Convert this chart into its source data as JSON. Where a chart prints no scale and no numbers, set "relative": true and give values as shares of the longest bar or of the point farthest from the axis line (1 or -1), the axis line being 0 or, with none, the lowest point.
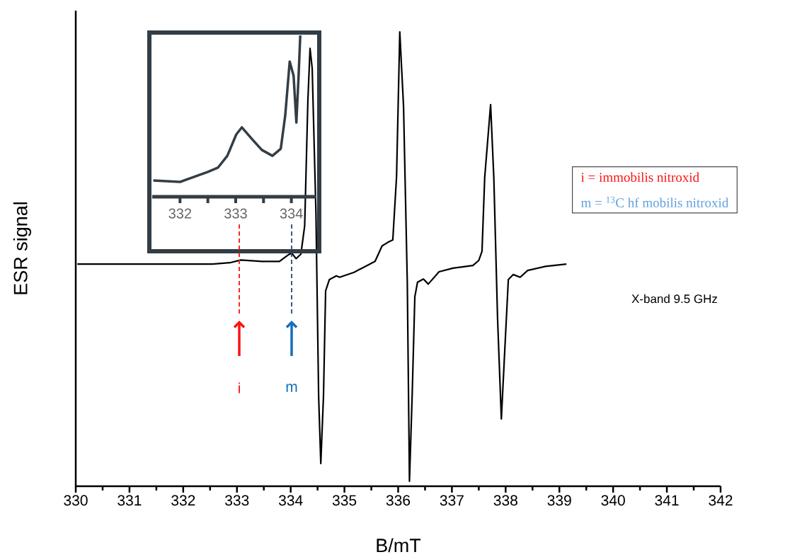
{
  "chart_data": [
    {
      "type": "line",
      "xlabel": "B/mT",
      "ylabel": "ESR signal",
      "relative": true,
      "xlim": [
        330,
        342
      ],
      "xticks": [
        330,
        331,
        332,
        333,
        334,
        335,
        336,
        337,
        338,
        339,
        340,
        341,
        342
      ],
      "x": [
        330.03,
        331.23,
        332.54,
        332.87,
        333.07,
        333.47,
        333.79,
        333.95,
        334.02,
        334.1,
        334.19,
        334.26,
        334.32,
        334.36,
        334.4,
        334.47,
        334.52,
        334.56,
        334.61,
        334.65,
        334.72,
        334.85,
        334.91,
        335.18,
        335.57,
        335.7,
        335.81,
        335.9,
        335.97,
        336.03,
        336.1,
        336.17,
        336.21,
        336.26,
        336.31,
        336.36,
        336.47,
        336.56,
        336.76,
        337.02,
        337.39,
        337.5,
        337.56,
        337.61,
        337.72,
        337.78,
        337.85,
        337.92,
        337.98,
        338.05,
        338.14,
        338.27,
        338.41,
        338.74,
        339.13
      ],
      "series": [
        {
          "color": "#000000",
          "values": [
            0.489,
            0.489,
            0.489,
            0.492,
            0.498,
            0.495,
            0.495,
            0.509,
            0.513,
            0.501,
            0.511,
            0.573,
            0.85,
            0.964,
            0.92,
            0.6,
            0.198,
            0.05,
            0.198,
            0.43,
            0.455,
            0.463,
            0.46,
            0.471,
            0.495,
            0.529,
            0.537,
            0.542,
            0.682,
            1.0,
            0.836,
            0.447,
            0.011,
            0.198,
            0.417,
            0.449,
            0.456,
            0.445,
            0.472,
            0.48,
            0.486,
            0.497,
            0.517,
            0.679,
            0.84,
            0.679,
            0.368,
            0.148,
            0.291,
            0.455,
            0.466,
            0.46,
            0.475,
            0.484,
            0.489
          ]
        }
      ],
      "annotations": [
        "i = immobilis nitroxid",
        "m = $^{13}$C hf mobilis nitroxid",
        "X-band 9.5 GHz",
        "i",
        "m"
      ]
    },
    {
      "type": "line",
      "relative": true,
      "xlim": [
        331.5,
        334.45
      ],
      "xticks": [
        332,
        {
          "value": 332.5,
          "label": null
        },
        333,
        {
          "value": 333.5,
          "label": null
        },
        334
      ],
      "x": [
        331.52,
        332.0,
        332.5,
        332.68,
        332.85,
        333.01,
        333.11,
        333.3,
        333.47,
        333.66,
        333.81,
        333.89,
        333.97,
        334.04,
        334.09,
        334.13,
        334.16
      ],
      "series": [
        {
          "color": "#333d45",
          "values": [
            0.101,
            0.092,
            0.154,
            0.18,
            0.254,
            0.386,
            0.43,
            0.355,
            0.29,
            0.254,
            0.298,
            0.504,
            0.838,
            0.75,
            0.46,
            0.75,
            1.0
          ]
        }
      ]
    }
  ]
}
